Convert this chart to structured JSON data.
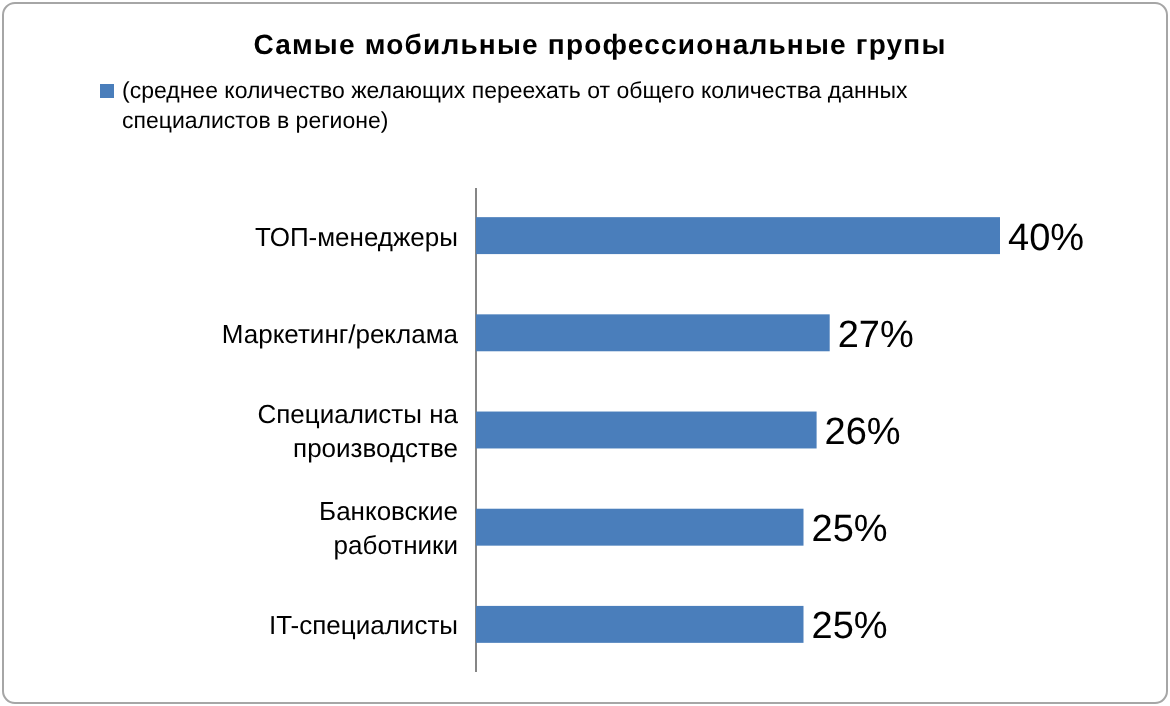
{
  "chart_data": {
    "type": "bar",
    "orientation": "horizontal",
    "title": "Самые мобильные профессиональные групы",
    "categories": [
      "ТОП-менеджеры",
      "Маркетинг/реклама",
      "Специалисты на производстве",
      "Банковские работники",
      "IT-специалисты"
    ],
    "series": [
      {
        "name": "(среднее количество желающих переехать от общего количества данных специалистов в регионе)",
        "color": "#4a7ebb",
        "values": [
          40,
          27,
          26,
          25,
          25
        ],
        "value_labels": [
          "40%",
          "27%",
          "26%",
          "25%",
          "25%"
        ]
      }
    ],
    "legend": "top left"
  }
}
